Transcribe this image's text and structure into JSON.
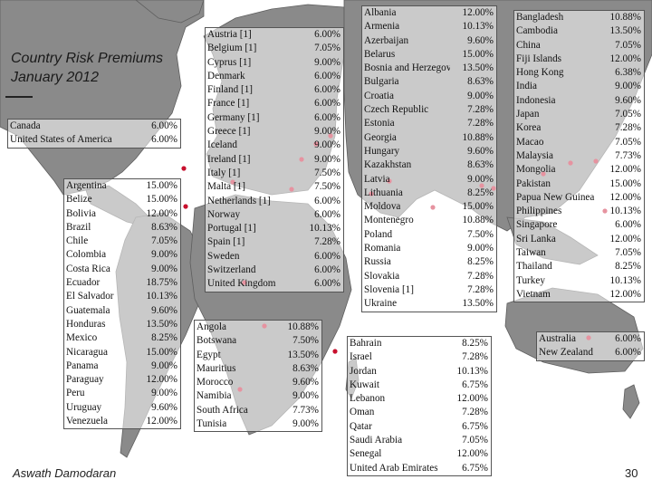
{
  "slide": {
    "title": "Country Risk Premiums\nJanuary 2012",
    "footer": "Aswath Damodaran",
    "page_number": "30"
  },
  "colors": {
    "land": "#8a8a8a",
    "coast": "#5e5e5e",
    "dot": "#c8102e",
    "frame": "#555555"
  },
  "tables": {
    "north_america": [
      {
        "country": "Canada",
        "premium": "6.00%"
      },
      {
        "country": "United States of America",
        "premium": "6.00%"
      }
    ],
    "latin_america": [
      {
        "country": "Argentina",
        "premium": "15.00%"
      },
      {
        "country": "Belize",
        "premium": "15.00%"
      },
      {
        "country": "Bolivia",
        "premium": "12.00%"
      },
      {
        "country": "Brazil",
        "premium": "8.63%"
      },
      {
        "country": "Chile",
        "premium": "7.05%"
      },
      {
        "country": "Colombia",
        "premium": "9.00%"
      },
      {
        "country": "Costa Rica",
        "premium": "9.00%"
      },
      {
        "country": "Ecuador",
        "premium": "18.75%"
      },
      {
        "country": "El Salvador",
        "premium": "10.13%"
      },
      {
        "country": "Guatemala",
        "premium": "9.60%"
      },
      {
        "country": "Honduras",
        "premium": "13.50%"
      },
      {
        "country": "Mexico",
        "premium": "8.25%"
      },
      {
        "country": "Nicaragua",
        "premium": "15.00%"
      },
      {
        "country": "Panama",
        "premium": "9.00%"
      },
      {
        "country": "Paraguay",
        "premium": "12.00%"
      },
      {
        "country": "Peru",
        "premium": "9.00%"
      },
      {
        "country": "Uruguay",
        "premium": "9.60%"
      },
      {
        "country": "Venezuela",
        "premium": "12.00%"
      }
    ],
    "western_europe": [
      {
        "country": "Austria [1]",
        "premium": "6.00%"
      },
      {
        "country": "Belgium [1]",
        "premium": "7.05%"
      },
      {
        "country": "Cyprus [1]",
        "premium": "9.00%"
      },
      {
        "country": "Denmark",
        "premium": "6.00%"
      },
      {
        "country": "Finland [1]",
        "premium": "6.00%"
      },
      {
        "country": "France [1]",
        "premium": "6.00%"
      },
      {
        "country": "Germany [1]",
        "premium": "6.00%"
      },
      {
        "country": "Greece [1]",
        "premium": "9.00%"
      },
      {
        "country": "Iceland",
        "premium": "9.00%"
      },
      {
        "country": "Ireland [1]",
        "premium": "9.00%"
      },
      {
        "country": "Italy [1]",
        "premium": "7.50%"
      },
      {
        "country": "Malta [1]",
        "premium": "7.50%"
      },
      {
        "country": "Netherlands [1]",
        "premium": "6.00%"
      },
      {
        "country": "Norway",
        "premium": "6.00%"
      },
      {
        "country": "Portugal [1]",
        "premium": "10.13%"
      },
      {
        "country": "Spain [1]",
        "premium": "7.28%"
      },
      {
        "country": "Sweden",
        "premium": "6.00%"
      },
      {
        "country": "Switzerland",
        "premium": "6.00%"
      },
      {
        "country": "United Kingdom",
        "premium": "6.00%"
      }
    ],
    "africa": [
      {
        "country": "Angola",
        "premium": "10.88%"
      },
      {
        "country": "Botswana",
        "premium": "7.50%"
      },
      {
        "country": "Egypt",
        "premium": "13.50%"
      },
      {
        "country": "Mauritius",
        "premium": "8.63%"
      },
      {
        "country": "Morocco",
        "premium": "9.60%"
      },
      {
        "country": "Namibia",
        "premium": "9.00%"
      },
      {
        "country": "South Africa",
        "premium": "7.73%"
      },
      {
        "country": "Tunisia",
        "premium": "9.00%"
      }
    ],
    "eastern_europe": [
      {
        "country": "Albania",
        "premium": "12.00%"
      },
      {
        "country": "Armenia",
        "premium": "10.13%"
      },
      {
        "country": "Azerbaijan",
        "premium": "9.60%"
      },
      {
        "country": "Belarus",
        "premium": "15.00%"
      },
      {
        "country": "Bosnia and Herzegovina",
        "premium": "13.50%"
      },
      {
        "country": "Bulgaria",
        "premium": "8.63%"
      },
      {
        "country": "Croatia",
        "premium": "9.00%"
      },
      {
        "country": "Czech Republic",
        "premium": "7.28%"
      },
      {
        "country": "Estonia",
        "premium": "7.28%"
      },
      {
        "country": "Georgia",
        "premium": "10.88%"
      },
      {
        "country": "Hungary",
        "premium": "9.60%"
      },
      {
        "country": "Kazakhstan",
        "premium": "8.63%"
      },
      {
        "country": "Latvia",
        "premium": "9.00%"
      },
      {
        "country": "Lithuania",
        "premium": "8.25%"
      },
      {
        "country": "Moldova",
        "premium": "15.00%"
      },
      {
        "country": "Montenegro",
        "premium": "10.88%"
      },
      {
        "country": "Poland",
        "premium": "7.50%"
      },
      {
        "country": "Romania",
        "premium": "9.00%"
      },
      {
        "country": "Russia",
        "premium": "8.25%"
      },
      {
        "country": "Slovakia",
        "premium": "7.28%"
      },
      {
        "country": "Slovenia [1]",
        "premium": "7.28%"
      },
      {
        "country": "Ukraine",
        "premium": "13.50%"
      }
    ],
    "middle_east": [
      {
        "country": "Bahrain",
        "premium": "8.25%"
      },
      {
        "country": "Israel",
        "premium": "7.28%"
      },
      {
        "country": "Jordan",
        "premium": "10.13%"
      },
      {
        "country": "Kuwait",
        "premium": "6.75%"
      },
      {
        "country": "Lebanon",
        "premium": "12.00%"
      },
      {
        "country": "Oman",
        "premium": "7.28%"
      },
      {
        "country": "Qatar",
        "premium": "6.75%"
      },
      {
        "country": "Saudi Arabia",
        "premium": "7.05%"
      },
      {
        "country": "Senegal",
        "premium": "12.00%"
      },
      {
        "country": "United Arab Emirates",
        "premium": "6.75%"
      }
    ],
    "asia": [
      {
        "country": "Bangladesh",
        "premium": "10.88%"
      },
      {
        "country": "Cambodia",
        "premium": "13.50%"
      },
      {
        "country": "China",
        "premium": "7.05%"
      },
      {
        "country": "Fiji Islands",
        "premium": "12.00%"
      },
      {
        "country": "Hong Kong",
        "premium": "6.38%"
      },
      {
        "country": "India",
        "premium": "9.00%"
      },
      {
        "country": "Indonesia",
        "premium": "9.60%"
      },
      {
        "country": "Japan",
        "premium": "7.05%"
      },
      {
        "country": "Korea",
        "premium": "7.28%"
      },
      {
        "country": "Macao",
        "premium": "7.05%"
      },
      {
        "country": "Malaysia",
        "premium": "7.73%"
      },
      {
        "country": "Mongolia",
        "premium": "12.00%"
      },
      {
        "country": "Pakistan",
        "premium": "15.00%"
      },
      {
        "country": "Papua New Guinea",
        "premium": "12.00%"
      },
      {
        "country": "Philippines",
        "premium": "10.13%"
      },
      {
        "country": "Singapore",
        "premium": "6.00%"
      },
      {
        "country": "Sri Lanka",
        "premium": "12.00%"
      },
      {
        "country": "Taiwan",
        "premium": "7.05%"
      },
      {
        "country": "Thailand",
        "premium": "8.25%"
      },
      {
        "country": "Turkey",
        "premium": "10.13%"
      },
      {
        "country": "Vietnam",
        "premium": "12.00%"
      }
    ],
    "oceania": [
      {
        "country": "Australia",
        "premium": "6.00%"
      },
      {
        "country": "New Zealand",
        "premium": "6.00%"
      }
    ]
  }
}
